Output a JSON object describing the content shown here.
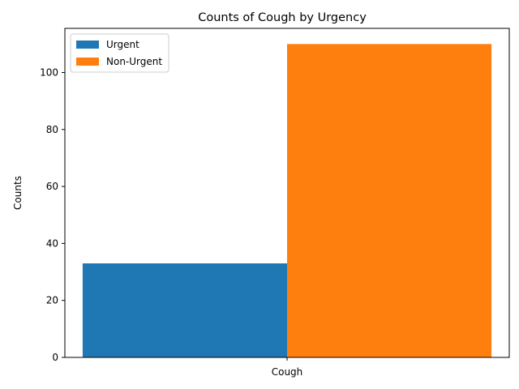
{
  "chart_data": {
    "type": "bar",
    "title": "Counts of Cough by Urgency",
    "xlabel": "",
    "ylabel": "Counts",
    "categories": [
      "Cough"
    ],
    "series": [
      {
        "name": "Urgent",
        "values": [
          33
        ],
        "color": "#1f77b4"
      },
      {
        "name": "Non-Urgent",
        "values": [
          110
        ],
        "color": "#ff7f0e"
      }
    ],
    "ylim": [
      0,
      115.5
    ],
    "yticks": [
      0,
      20,
      40,
      60,
      80,
      100
    ],
    "grid": false,
    "legend_position": "top-left"
  }
}
